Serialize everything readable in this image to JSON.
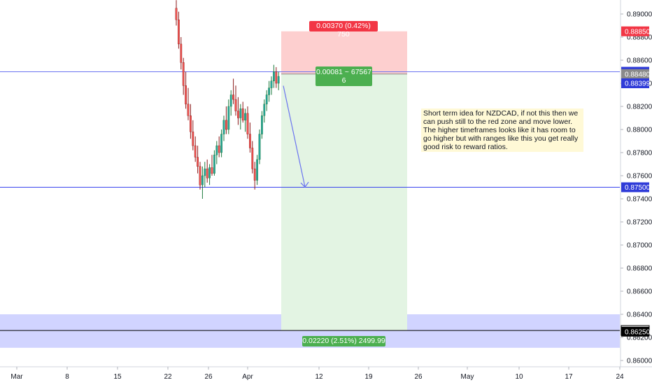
{
  "chart_data": {
    "type": "candlestick",
    "symbol_note": "NZDCAD",
    "y_ticks": [
      "0.89000",
      "0.88800",
      "0.88600",
      "0.88400",
      "0.88200",
      "0.88000",
      "0.87800",
      "0.87600",
      "0.87400",
      "0.87200",
      "0.87000",
      "0.86800",
      "0.86600",
      "0.86400",
      "0.86200",
      "0.86000"
    ],
    "x_ticks": [
      "Mar",
      "8",
      "15",
      "22",
      "26",
      "Apr",
      "12",
      "19",
      "26",
      "May",
      "10",
      "17",
      "24"
    ],
    "ylim": [
      0.8597,
      0.8913
    ],
    "price_tags": [
      {
        "label": "0.88850",
        "value": 0.8885,
        "style": "red"
      },
      {
        "label": "0.88500",
        "value": 0.885,
        "style": "blue"
      },
      {
        "label": "0.88480",
        "value": 0.8848,
        "style": "gray"
      },
      {
        "label": "0.88399",
        "value": 0.884,
        "style": "blue"
      },
      {
        "label": "0.87500",
        "value": 0.875,
        "style": "blue"
      },
      {
        "label": "0.86260",
        "value": 0.8626,
        "style": "black-outline"
      },
      {
        "label": "0.86250",
        "value": 0.8625,
        "style": "black"
      }
    ],
    "horizontal_lines": [
      {
        "value": 0.885,
        "color": "#6b74f0"
      },
      {
        "value": 0.875,
        "color": "#3a45ee"
      },
      {
        "value": 0.8626,
        "color": "#000000"
      }
    ],
    "demand_zone": {
      "top": 0.864,
      "bottom": 0.8611,
      "color": "#c9ccff"
    },
    "position": {
      "entry": 0.8848,
      "stop": 0.8885,
      "target": 0.8626,
      "risk_label": "0.00370 (0.42%) 750",
      "open_label_line1": "0.00081 ~ 67567",
      "open_label_line2": "6",
      "reward_label": "0.02220 (2.51%) 2499.99"
    },
    "arrow": {
      "from": [
        0.8847,
        0.8847
      ],
      "to": [
        0.8749,
        0.8749
      ]
    },
    "candles": [
      {
        "o": 0.8905,
        "h": 0.8912,
        "l": 0.889,
        "c": 0.8895
      },
      {
        "o": 0.8895,
        "h": 0.8902,
        "l": 0.887,
        "c": 0.8874
      },
      {
        "o": 0.8874,
        "h": 0.888,
        "l": 0.8852,
        "c": 0.8858
      },
      {
        "o": 0.8858,
        "h": 0.8862,
        "l": 0.883,
        "c": 0.8838
      },
      {
        "o": 0.8838,
        "h": 0.885,
        "l": 0.8818,
        "c": 0.8822
      },
      {
        "o": 0.8822,
        "h": 0.8836,
        "l": 0.8808,
        "c": 0.8812
      },
      {
        "o": 0.8812,
        "h": 0.8822,
        "l": 0.8792,
        "c": 0.8798
      },
      {
        "o": 0.8798,
        "h": 0.8808,
        "l": 0.8782,
        "c": 0.8786
      },
      {
        "o": 0.8786,
        "h": 0.8794,
        "l": 0.8772,
        "c": 0.8776
      },
      {
        "o": 0.8776,
        "h": 0.8786,
        "l": 0.8762,
        "c": 0.8768
      },
      {
        "o": 0.8768,
        "h": 0.8772,
        "l": 0.8748,
        "c": 0.8752
      },
      {
        "o": 0.8752,
        "h": 0.8768,
        "l": 0.874,
        "c": 0.876
      },
      {
        "o": 0.876,
        "h": 0.8772,
        "l": 0.875,
        "c": 0.8766
      },
      {
        "o": 0.8766,
        "h": 0.8774,
        "l": 0.8754,
        "c": 0.8758
      },
      {
        "o": 0.8758,
        "h": 0.877,
        "l": 0.8752,
        "c": 0.8767
      },
      {
        "o": 0.8767,
        "h": 0.8778,
        "l": 0.876,
        "c": 0.8762
      },
      {
        "o": 0.8762,
        "h": 0.8782,
        "l": 0.876,
        "c": 0.8778
      },
      {
        "o": 0.8778,
        "h": 0.879,
        "l": 0.877,
        "c": 0.8786
      },
      {
        "o": 0.8786,
        "h": 0.8794,
        "l": 0.8776,
        "c": 0.878
      },
      {
        "o": 0.878,
        "h": 0.88,
        "l": 0.8776,
        "c": 0.8796
      },
      {
        "o": 0.8796,
        "h": 0.8812,
        "l": 0.879,
        "c": 0.8808
      },
      {
        "o": 0.8808,
        "h": 0.882,
        "l": 0.8796,
        "c": 0.88
      },
      {
        "o": 0.88,
        "h": 0.8826,
        "l": 0.8796,
        "c": 0.882
      },
      {
        "o": 0.882,
        "h": 0.8834,
        "l": 0.8812,
        "c": 0.883
      },
      {
        "o": 0.883,
        "h": 0.8844,
        "l": 0.8822,
        "c": 0.8826
      },
      {
        "o": 0.8826,
        "h": 0.8838,
        "l": 0.8812,
        "c": 0.8816
      },
      {
        "o": 0.8816,
        "h": 0.8828,
        "l": 0.8804,
        "c": 0.881
      },
      {
        "o": 0.881,
        "h": 0.8822,
        "l": 0.88,
        "c": 0.8818
      },
      {
        "o": 0.8818,
        "h": 0.8824,
        "l": 0.8806,
        "c": 0.8808
      },
      {
        "o": 0.8808,
        "h": 0.8818,
        "l": 0.8798,
        "c": 0.8814
      },
      {
        "o": 0.8814,
        "h": 0.882,
        "l": 0.8792,
        "c": 0.8796
      },
      {
        "o": 0.8796,
        "h": 0.8806,
        "l": 0.878,
        "c": 0.8784
      },
      {
        "o": 0.8784,
        "h": 0.879,
        "l": 0.8762,
        "c": 0.8766
      },
      {
        "o": 0.8766,
        "h": 0.8772,
        "l": 0.8748,
        "c": 0.8756
      },
      {
        "o": 0.8756,
        "h": 0.8778,
        "l": 0.8752,
        "c": 0.8774
      },
      {
        "o": 0.8774,
        "h": 0.88,
        "l": 0.877,
        "c": 0.8796
      },
      {
        "o": 0.8796,
        "h": 0.8816,
        "l": 0.8792,
        "c": 0.8812
      },
      {
        "o": 0.8812,
        "h": 0.8826,
        "l": 0.8806,
        "c": 0.8822
      },
      {
        "o": 0.8822,
        "h": 0.8834,
        "l": 0.8816,
        "c": 0.883
      },
      {
        "o": 0.883,
        "h": 0.8842,
        "l": 0.8824,
        "c": 0.8836
      },
      {
        "o": 0.8836,
        "h": 0.8846,
        "l": 0.883,
        "c": 0.8842
      },
      {
        "o": 0.8842,
        "h": 0.8856,
        "l": 0.8836,
        "c": 0.885
      },
      {
        "o": 0.885,
        "h": 0.8854,
        "l": 0.8836,
        "c": 0.884
      },
      {
        "o": 0.884,
        "h": 0.885,
        "l": 0.8834,
        "c": 0.8846
      }
    ]
  },
  "note": {
    "text": "Short term idea for NZDCAD, if not this then we can push still to the red zone and move lower. The higher timeframes looks like it has room to go higher but with ranges like this you get really good risk to reward ratios."
  },
  "colors": {
    "up": "#26a69a",
    "down": "#ef5350",
    "up_dark": "#1e7a3c",
    "down_dark": "#8b1a1a",
    "risk": "#fdcfcf",
    "reward": "#e3f4e3"
  }
}
